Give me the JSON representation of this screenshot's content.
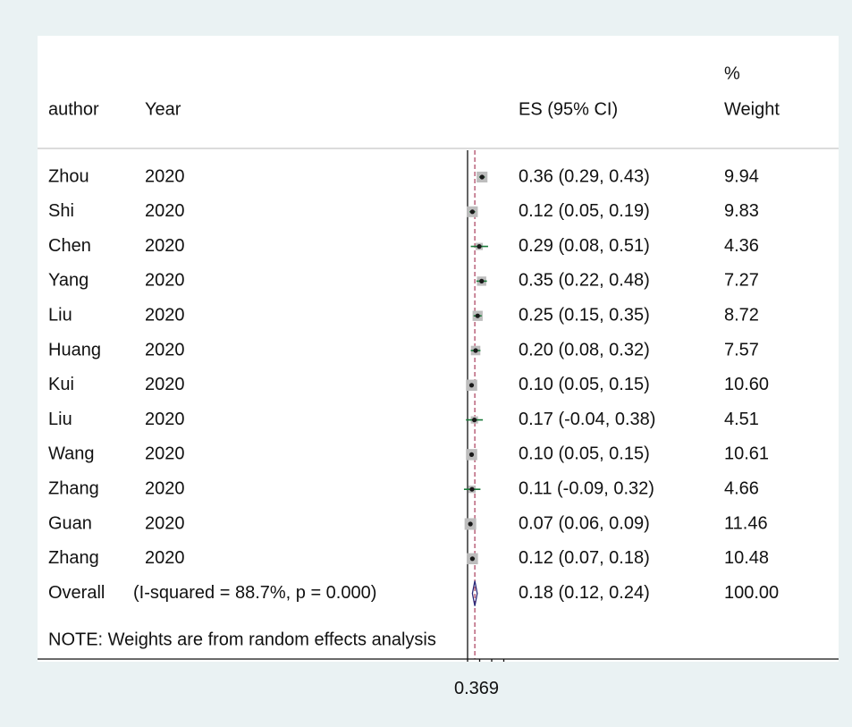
{
  "chart_data": {
    "type": "forest",
    "headers": {
      "author": "author",
      "year": "Year",
      "es": "ES (95% CI)",
      "weight_line1": "%",
      "weight_line2": "Weight"
    },
    "studies": [
      {
        "author": "Zhou",
        "year": "2020",
        "es": 0.36,
        "lo": 0.29,
        "hi": 0.43,
        "es_label": "0.36 (0.29, 0.43)",
        "weight": "9.94",
        "w": 9.94
      },
      {
        "author": "Shi",
        "year": "2020",
        "es": 0.12,
        "lo": 0.05,
        "hi": 0.19,
        "es_label": "0.12 (0.05, 0.19)",
        "weight": "9.83",
        "w": 9.83
      },
      {
        "author": "Chen",
        "year": "2020",
        "es": 0.29,
        "lo": 0.08,
        "hi": 0.51,
        "es_label": "0.29 (0.08, 0.51)",
        "weight": "4.36",
        "w": 4.36
      },
      {
        "author": "Yang",
        "year": "2020",
        "es": 0.35,
        "lo": 0.22,
        "hi": 0.48,
        "es_label": "0.35 (0.22, 0.48)",
        "weight": "7.27",
        "w": 7.27
      },
      {
        "author": "Liu",
        "year": "2020",
        "es": 0.25,
        "lo": 0.15,
        "hi": 0.35,
        "es_label": "0.25 (0.15, 0.35)",
        "weight": "8.72",
        "w": 8.72
      },
      {
        "author": "Huang",
        "year": "2020",
        "es": 0.2,
        "lo": 0.08,
        "hi": 0.32,
        "es_label": "0.20 (0.08, 0.32)",
        "weight": "7.57",
        "w": 7.57
      },
      {
        "author": "Kui",
        "year": "2020",
        "es": 0.1,
        "lo": 0.05,
        "hi": 0.15,
        "es_label": "0.10 (0.05, 0.15)",
        "weight": "10.60",
        "w": 10.6
      },
      {
        "author": "Liu",
        "year": "2020",
        "es": 0.17,
        "lo": -0.04,
        "hi": 0.38,
        "es_label": "0.17 (-0.04, 0.38)",
        "weight": "4.51",
        "w": 4.51
      },
      {
        "author": "Wang",
        "year": "2020",
        "es": 0.1,
        "lo": 0.05,
        "hi": 0.15,
        "es_label": "0.10 (0.05, 0.15)",
        "weight": "10.61",
        "w": 10.61
      },
      {
        "author": "Zhang",
        "year": "2020",
        "es": 0.11,
        "lo": -0.09,
        "hi": 0.32,
        "es_label": "0.11 (-0.09, 0.32)",
        "weight": "4.66",
        "w": 4.66
      },
      {
        "author": "Guan",
        "year": "2020",
        "es": 0.07,
        "lo": 0.06,
        "hi": 0.09,
        "es_label": "0.07 (0.06, 0.09)",
        "weight": "11.46",
        "w": 11.46
      },
      {
        "author": "Zhang",
        "year": "2020",
        "es": 0.12,
        "lo": 0.07,
        "hi": 0.18,
        "es_label": "0.12 (0.07, 0.18)",
        "weight": "10.48",
        "w": 10.48
      }
    ],
    "overall": {
      "label": "Overall",
      "stats": "(I-squared = 88.7%, p = 0.000)",
      "es": 0.18,
      "lo": 0.12,
      "hi": 0.24,
      "es_label": "0.18 (0.12, 0.24)",
      "weight": "100.00"
    },
    "note": "NOTE: Weights are from random effects analysis",
    "x_axis": {
      "ticks": [
        0,
        0.3,
        0.6,
        0.9
      ],
      "tick_label": "0.369",
      "null_line": 0
    },
    "colors": {
      "background": "#eaf2f3",
      "panel": "#ffffff",
      "marker_box": "#bdbdbd",
      "point": "#1a1a1a",
      "ci_line": "#1a7a3a",
      "overall_line": "#a0284b",
      "diamond": "#2a2a7a",
      "axis": "#111111",
      "header_line": "#c8c8c8"
    }
  }
}
